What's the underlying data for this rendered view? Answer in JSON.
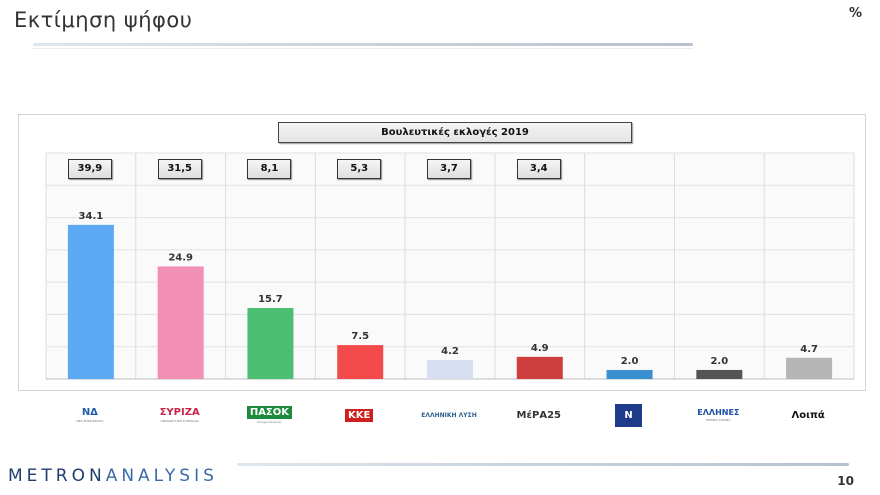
{
  "header": {
    "title": "Εκτίμηση ψήφου",
    "unit": "%"
  },
  "footer": {
    "brand_left": "METRON",
    "brand_right": "ANALYSIS",
    "page_number": "10"
  },
  "chart_data": {
    "type": "bar",
    "title": "Βουλευτικές εκλογές 2019",
    "categories": [
      "ΝΔ",
      "ΣΥΡΙΖΑ",
      "ΠΑΣΟΚ",
      "ΚΚΕ",
      "Ελληνική Λύση",
      "ΜέΡΑ25",
      "Νίκη",
      "Έλληνες",
      "Λοιπά"
    ],
    "values": [
      34.1,
      24.9,
      15.7,
      7.5,
      4.2,
      4.9,
      2.0,
      2.0,
      4.7
    ],
    "value_labels": [
      "34.1",
      "24.9",
      "15.7",
      "7.5",
      "4.2",
      "4.9",
      "2.0",
      "2.0",
      "4.7"
    ],
    "previous_2019": [
      "39,9",
      "31,5",
      "8,1",
      "5,3",
      "3,7",
      "3,4",
      null,
      null,
      null
    ],
    "colors": [
      "#5aa9f2",
      "#f28fb4",
      "#4cbf72",
      "#f24a4a",
      "#d7e0f2",
      "#cf3e3e",
      "#3a8fd0",
      "#555555",
      "#b5b5b5"
    ],
    "ylim": [
      0,
      50
    ],
    "grid": true
  },
  "logos": [
    {
      "text": "ΝΔ",
      "sub": "ΝΕΑ ΔΗΜΟΚΡΑΤΙΑ",
      "color": "#1d5ea8"
    },
    {
      "text": "ΣΥΡΙΖΑ",
      "sub": "ΠΡΟΟΔΕΥΤΙΚΗ ΣΥΜΜΑΧΙΑ",
      "color": "#c8234b"
    },
    {
      "text": "ΠΑΣΟΚ",
      "sub": "Κίνημα Αλλαγής",
      "color": "#1d8a3c"
    },
    {
      "text": "ΚΚΕ",
      "sub": "",
      "color": "#d01f1f"
    },
    {
      "text": "ΕΛΛΗΝΙΚΗ ΛΥΣΗ",
      "sub": "",
      "color": "#2a5d8f"
    },
    {
      "text": "ΜέΡΑ25",
      "sub": "",
      "color": "#333333"
    },
    {
      "text": "Ν",
      "sub": "",
      "color": "#1e3b8a"
    },
    {
      "text": "ΕΛΛΗΝΕΣ",
      "sub": "ΕΘΝΙΚΟ ΚΟΜΜΑ",
      "color": "#1e4ea1"
    },
    {
      "text": "Λοιπά",
      "sub": "",
      "color": "#111111"
    }
  ]
}
